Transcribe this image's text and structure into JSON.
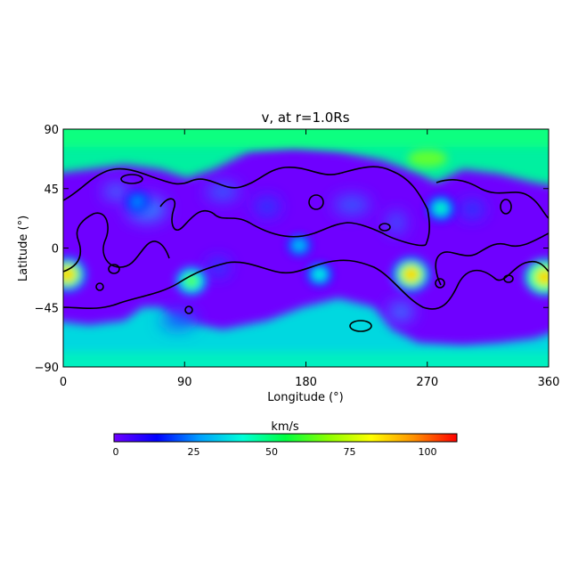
{
  "chart_data": {
    "type": "heatmap",
    "title": "v, at r=1.0Rs",
    "xlabel": "Longitude (°)",
    "ylabel": "Latitude (°)",
    "xlim": [
      0,
      360
    ],
    "ylim": [
      -90,
      90
    ],
    "x_ticks": [
      "0",
      "90",
      "180",
      "270",
      "360"
    ],
    "y_ticks": [
      "90",
      "45",
      "0",
      "−45",
      "−90"
    ],
    "colorbar": {
      "label": "km/s",
      "range": [
        0,
        110
      ],
      "ticks": [
        "0",
        "25",
        "50",
        "75",
        "100"
      ],
      "tick_values": [
        0,
        25,
        50,
        75,
        100
      ],
      "colors": [
        "#6f00ff",
        "#0000ff",
        "#00a0ff",
        "#00ffd8",
        "#00ff40",
        "#8cff00",
        "#ffff00",
        "#ff9000",
        "#ff0000"
      ]
    },
    "features": {
      "polar_band": {
        "north_lat_min": 62,
        "south_lat_max": -48,
        "value": 48
      },
      "hot_spots": [
        {
          "lon": 3,
          "lat": -20,
          "value": 95
        },
        {
          "lon": 95,
          "lat": -25,
          "value": 65
        },
        {
          "lon": 258,
          "lat": -20,
          "value": 95
        },
        {
          "lon": 357,
          "lat": -22,
          "value": 100
        },
        {
          "lon": 190,
          "lat": -20,
          "value": 45
        },
        {
          "lon": 175,
          "lat": 2,
          "value": 35
        },
        {
          "lon": 55,
          "lat": 35,
          "value": 30
        },
        {
          "lon": 280,
          "lat": 30,
          "value": 55
        },
        {
          "lon": 393,
          "lat": -20,
          "value": 30
        }
      ],
      "contour_level": 10
    }
  }
}
